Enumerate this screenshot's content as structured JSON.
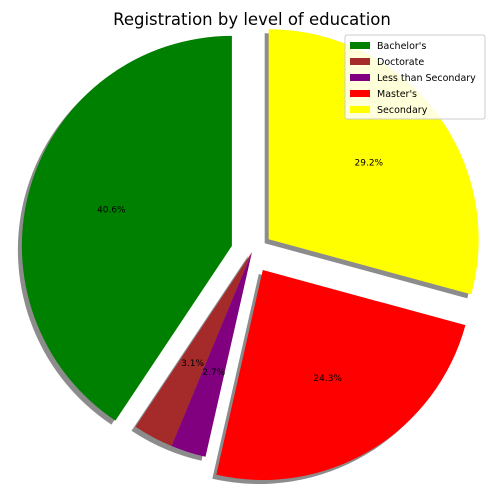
{
  "chart_data": {
    "type": "pie",
    "title": "Registration by level of education",
    "categories": [
      "Bachelor's",
      "Doctorate",
      "Less than Secondary",
      "Master's",
      "Secondary"
    ],
    "values": [
      40.6,
      3.1,
      2.7,
      24.3,
      29.2
    ],
    "labels": [
      "40.6%",
      "3.1%",
      "2.7%",
      "24.3%",
      "29.2%"
    ],
    "colors": [
      "#008000",
      "#a52a2a",
      "#800080",
      "#ff0000",
      "#ffff00"
    ],
    "exploded": [
      true,
      false,
      false,
      true,
      true
    ],
    "start_angle_deg": 90,
    "direction": "counterclockwise",
    "shadow": true,
    "legend": {
      "position": "top-right",
      "entries": [
        "Bachelor's",
        "Doctorate",
        "Less than Secondary",
        "Master's",
        "Secondary"
      ]
    }
  }
}
